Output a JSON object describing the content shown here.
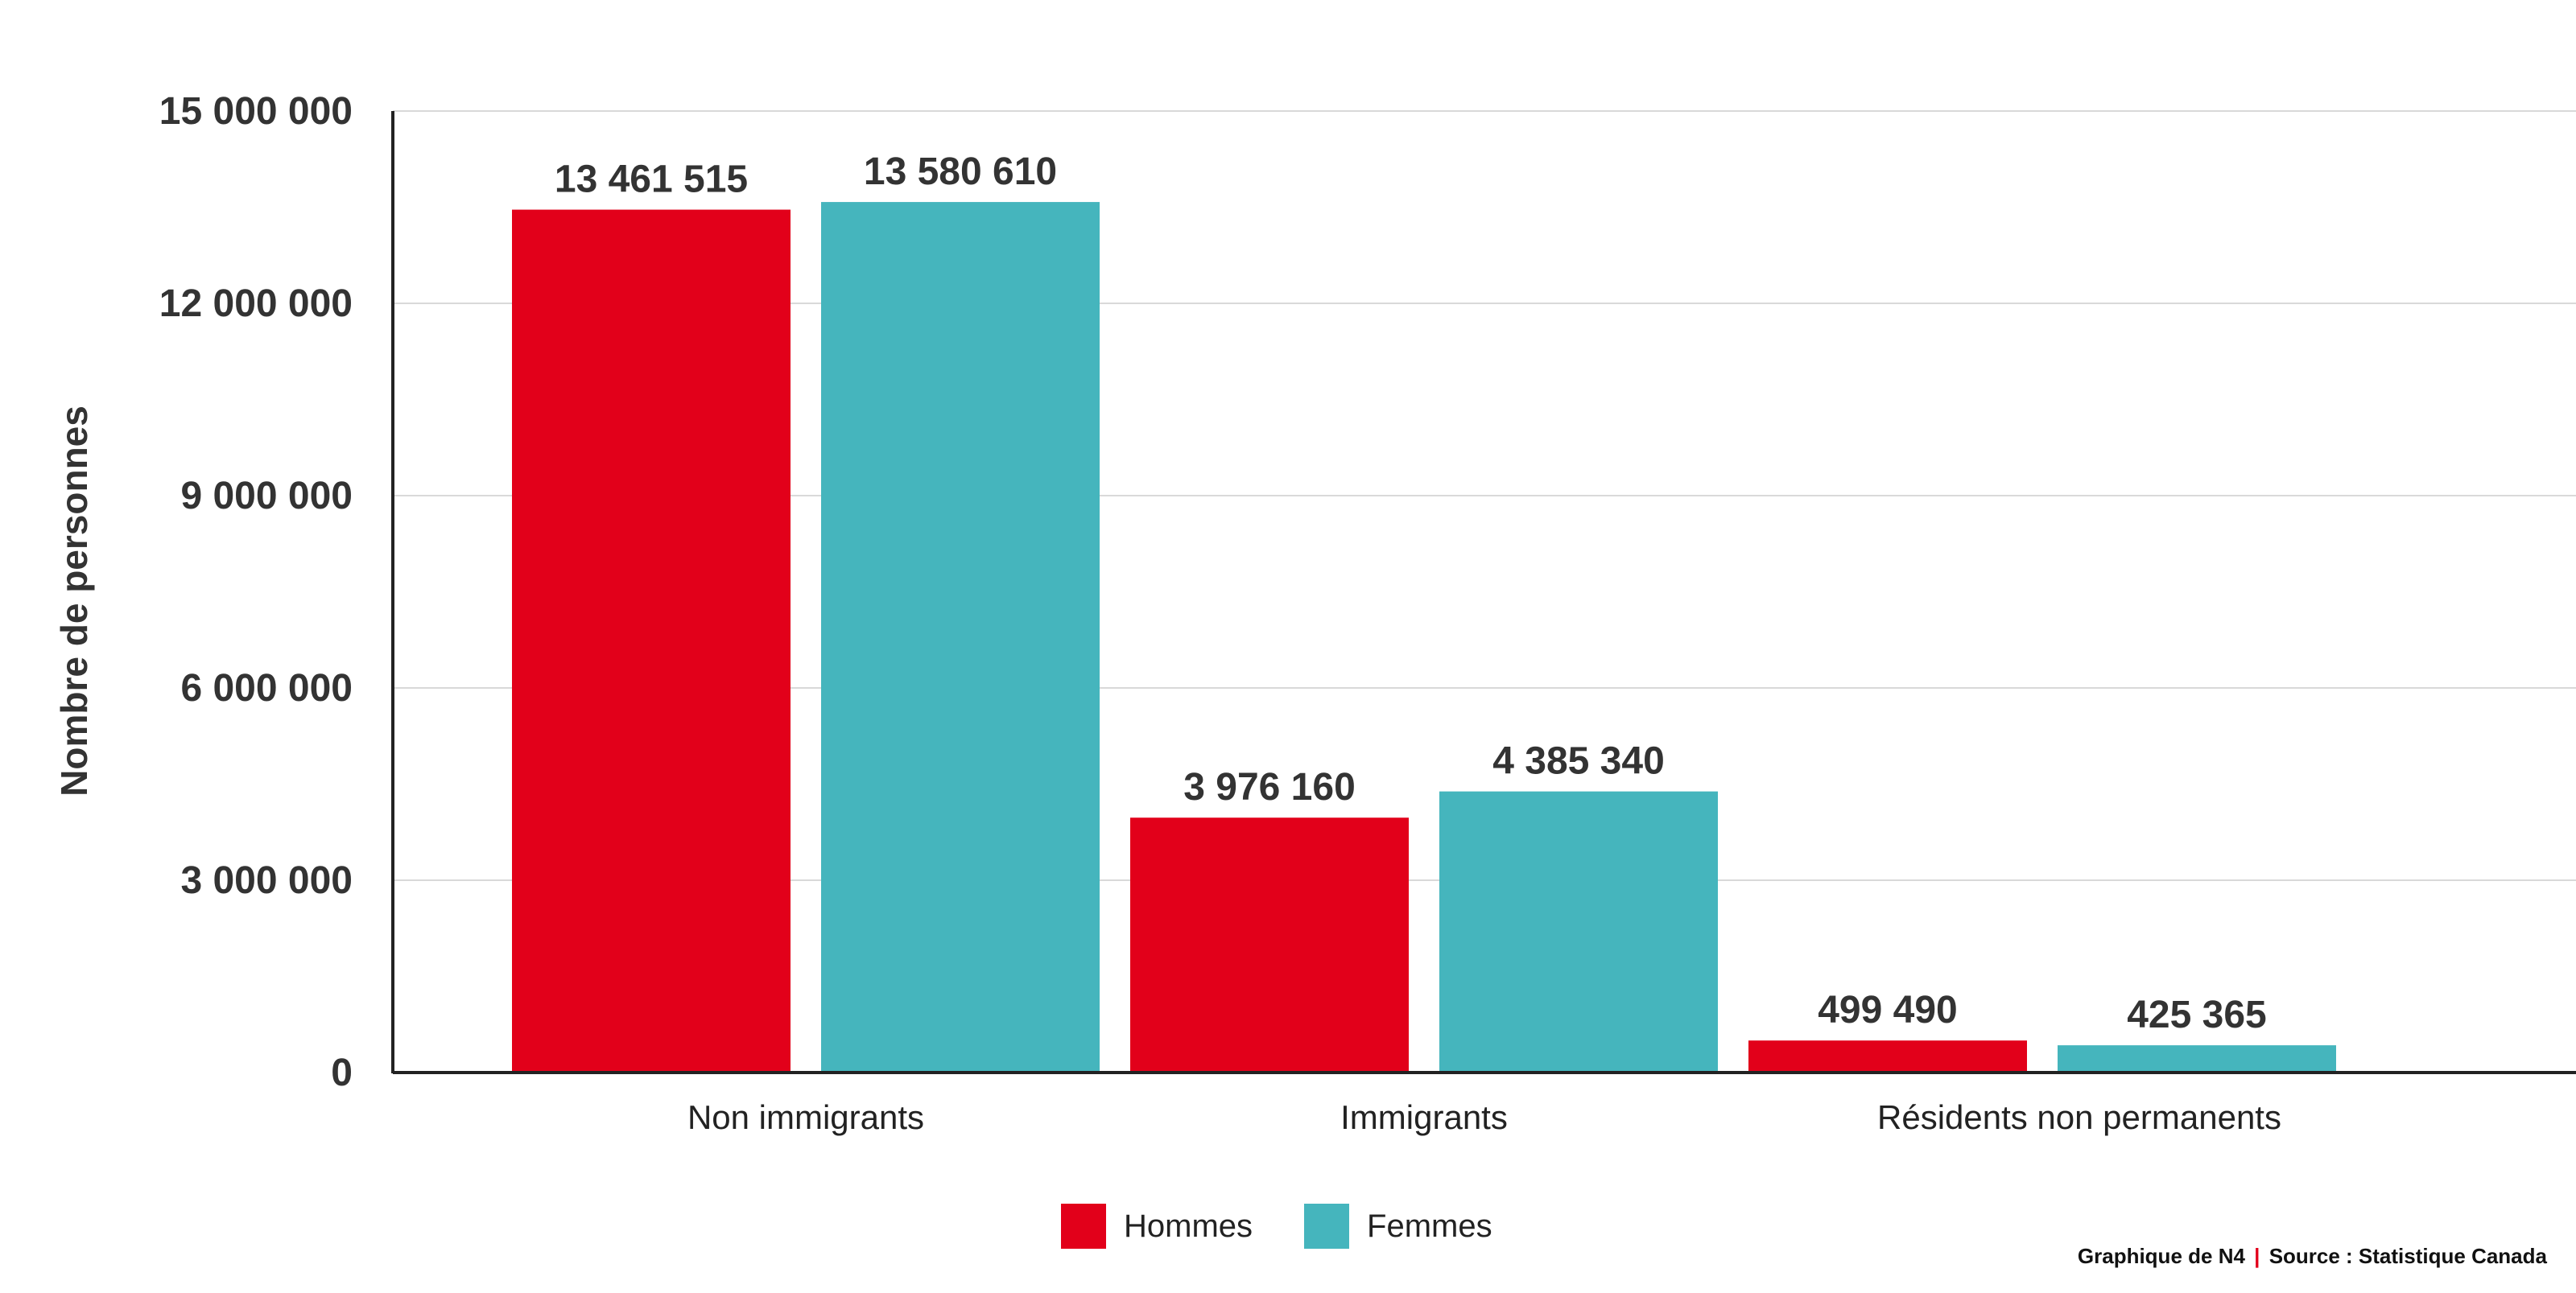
{
  "chart_data": {
    "type": "bar",
    "categories": [
      "Non immigrants",
      "Immigrants",
      "Résidents non permanents"
    ],
    "series": [
      {
        "name": "Hommes",
        "values": [
          13461515,
          3976160,
          499490
        ],
        "labels": [
          "13 461 515",
          "3 976 160",
          "499 490"
        ],
        "color": "#e2001a"
      },
      {
        "name": "Femmes",
        "values": [
          13580610,
          4385340,
          425365
        ],
        "labels": [
          "13 580 610",
          "4 385 340",
          "425 365"
        ],
        "color": "#45b5bd"
      }
    ],
    "ylabel": "Nombre de personnes",
    "xlabel": "",
    "ylim": [
      0,
      15000000
    ],
    "yticks": [
      0,
      3000000,
      6000000,
      9000000,
      12000000,
      15000000
    ],
    "ytick_labels": [
      "0",
      "3 000 000",
      "6 000 000",
      "9 000 000",
      "12 000 000",
      "15 000 000"
    ],
    "grid": true,
    "legend_position": "bottom-center"
  },
  "footer": {
    "credit": "Graphique de N4",
    "separator": "|",
    "source": "Source : Statistique Canada"
  }
}
